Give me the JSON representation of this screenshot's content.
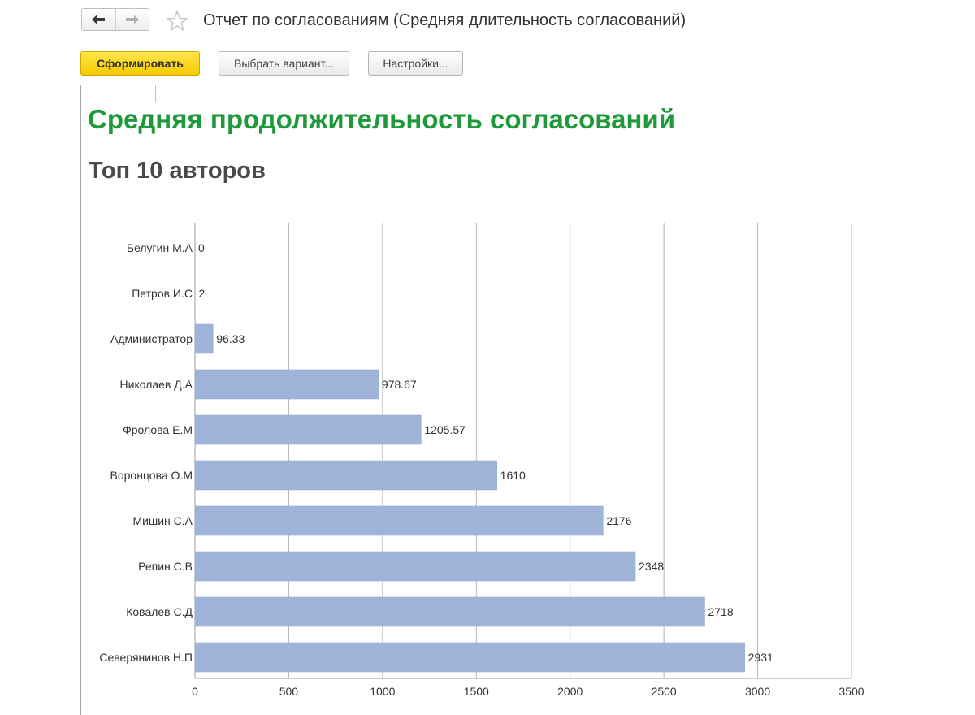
{
  "window": {
    "title": "Отчет по согласованиям (Средняя длительность согласований)"
  },
  "toolbar": {
    "generate_label": "Сформировать",
    "choose_variant_label": "Выбрать вариант...",
    "settings_label": "Настройки..."
  },
  "report": {
    "title": "Средняя продолжительность согласований",
    "subtitle": "Топ 10 авторов"
  },
  "colors": {
    "bar": "#a0b4da",
    "bar_stroke": "#8ea3cc",
    "title_green": "#1f9a3b",
    "primary_button": "#f4c900",
    "grid": "#b5b5b5"
  },
  "icons": {
    "back": "arrow-left-icon",
    "forward": "arrow-right-icon",
    "favorite": "star-icon"
  },
  "chart_data": {
    "type": "bar",
    "orientation": "horizontal",
    "categories": [
      "Белугин М.А",
      "Петров И.С",
      "Администратор",
      "Николаев Д.А",
      "Фролова Е.М",
      "Воронцова О.М",
      "Мишин С.А",
      "Репин С.В",
      "Ковалев С.Д",
      "Северянинов Н.П"
    ],
    "values": [
      0,
      2,
      96.33,
      978.67,
      1205.57,
      1610,
      2176,
      2348,
      2718,
      2931
    ],
    "value_labels": [
      "0",
      "2",
      "96.33",
      "978.67",
      "1205.57",
      "1610",
      "2176",
      "2348",
      "2718",
      "2931"
    ],
    "xlim": [
      0,
      3500
    ],
    "x_ticks": [
      0,
      500,
      1000,
      1500,
      2000,
      2500,
      3000,
      3500
    ],
    "x_tick_labels": [
      "0",
      "500",
      "1000",
      "1500",
      "2000",
      "2500",
      "3000",
      "3500"
    ],
    "grid": true,
    "legend": "none"
  }
}
